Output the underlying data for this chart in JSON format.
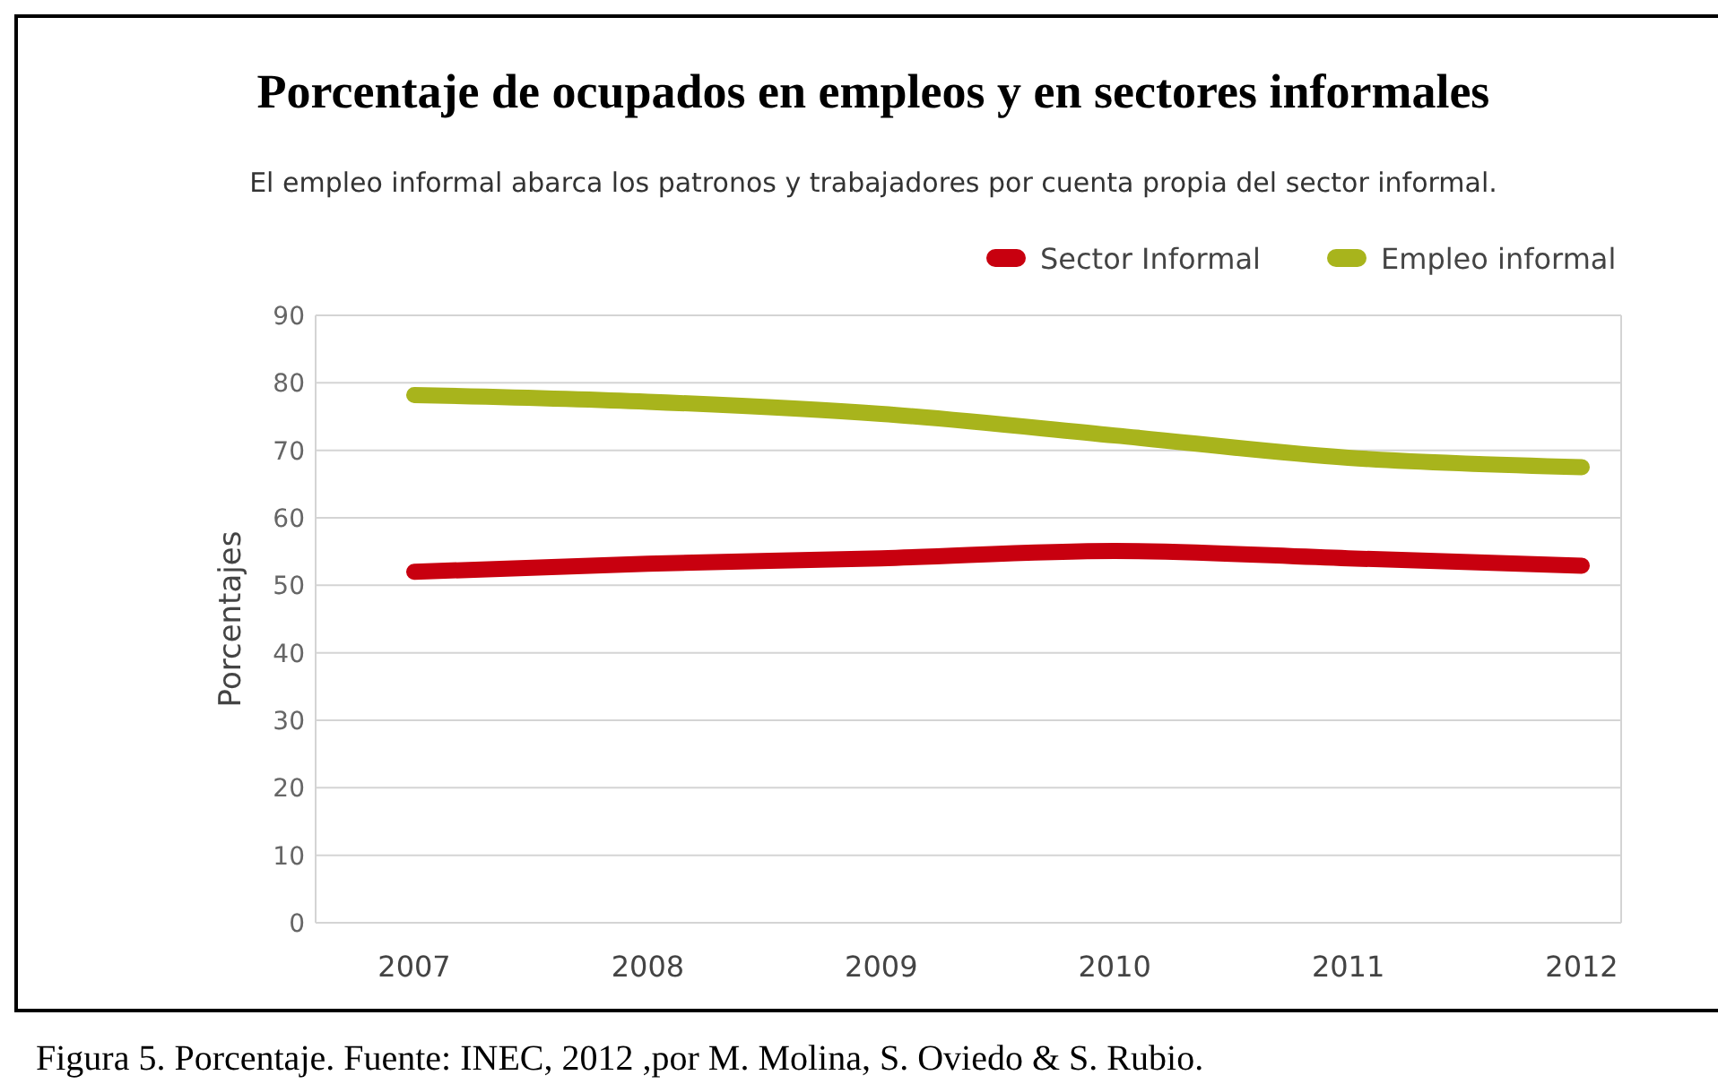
{
  "chart_data": {
    "type": "line",
    "title": "Porcentaje de ocupados en empleos y en sectores informales",
    "subtitle": "El empleo informal abarca los patronos y trabajadores por cuenta propia del sector informal.",
    "ylabel": "Porcentajes",
    "categories": [
      "2007",
      "2008",
      "2009",
      "2010",
      "2011",
      "2012"
    ],
    "series": [
      {
        "name": "Sector Informal",
        "color": "#c8000f",
        "values": [
          52.0,
          53.2,
          54.0,
          55.1,
          54.0,
          52.9
        ]
      },
      {
        "name": "Empleo informal",
        "color": "#a8b41c",
        "values": [
          78.2,
          77.2,
          75.4,
          72.2,
          68.9,
          67.5
        ]
      }
    ],
    "ylim": [
      0,
      90
    ],
    "yticks": [
      0,
      10,
      20,
      30,
      40,
      50,
      60,
      70,
      80,
      90
    ],
    "grid": "y",
    "legend": "top right",
    "marker": "none",
    "line_style": "solid",
    "annotations": [
      "Figura 5. Porcentaje. Fuente: INEC,  2012 ,por M. Molina, S. Oviedo & S. Rubio."
    ]
  }
}
